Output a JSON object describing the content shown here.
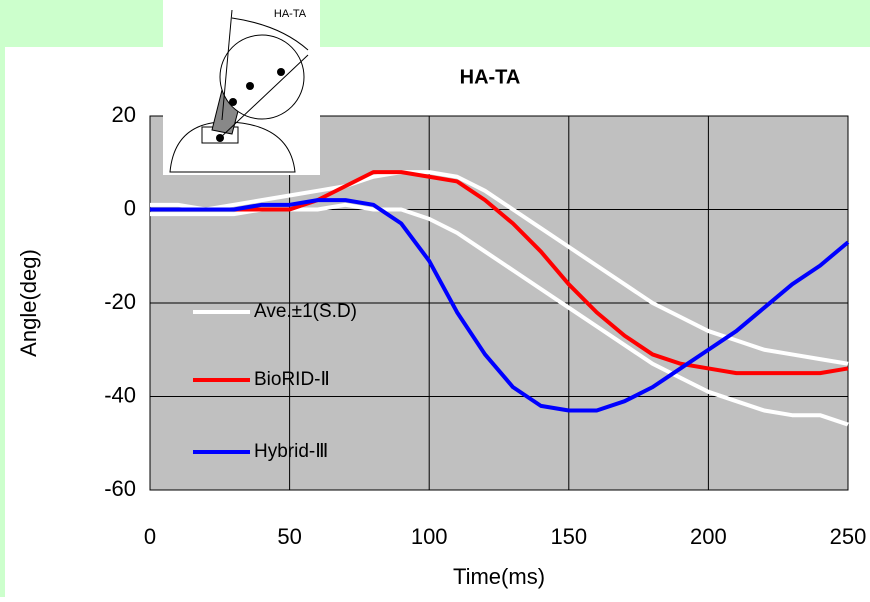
{
  "chart_data": {
    "type": "line",
    "title": "HA-TA",
    "x_label": "Time(ms)",
    "y_label": "Angle(deg)",
    "x": [
      0,
      10,
      20,
      30,
      40,
      50,
      60,
      70,
      80,
      90,
      100,
      110,
      120,
      130,
      140,
      150,
      160,
      170,
      180,
      190,
      200,
      210,
      220,
      230,
      240,
      250
    ],
    "series": [
      {
        "name": "Ave.±1(S.D)",
        "color": "#ffffff",
        "values": [
          1,
          1,
          0,
          1,
          2,
          3,
          4,
          5,
          7,
          8,
          8,
          7,
          4,
          0,
          -4,
          -8,
          -12,
          -16,
          -20,
          -23,
          -26,
          -28,
          -30,
          -31,
          -32,
          -33
        ]
      },
      {
        "color": "#ffffff",
        "values": [
          -1,
          -1,
          -1,
          -1,
          0,
          0,
          0,
          1,
          0,
          0,
          -2,
          -5,
          -9,
          -13,
          -17,
          -21,
          -25,
          -29,
          -33,
          -36,
          -39,
          -41,
          -43,
          -44,
          -44,
          -46
        ]
      },
      {
        "name": "BioRID-Ⅱ",
        "color": "#ff0000",
        "values": [
          0,
          0,
          0,
          0,
          0,
          0,
          2,
          5,
          8,
          8,
          7,
          6,
          2,
          -3,
          -9,
          -16,
          -22,
          -27,
          -31,
          -33,
          -34,
          -35,
          -35,
          -35,
          -35,
          -34
        ]
      },
      {
        "name": "Hybrid-Ⅲ",
        "color": "#0000ff",
        "values": [
          0,
          0,
          0,
          0,
          1,
          1,
          2,
          2,
          1,
          -3,
          -11,
          -22,
          -31,
          -38,
          -42,
          -43,
          -43,
          -41,
          -38,
          -34,
          -30,
          -26,
          -21,
          -16,
          -12,
          -7
        ]
      }
    ],
    "xlim": [
      0,
      250
    ],
    "xticks": [
      0,
      50,
      100,
      150,
      200,
      250
    ],
    "ylim": [
      -60,
      20
    ],
    "yticks": [
      -60,
      -40,
      -20,
      0,
      20
    ],
    "grid": true
  },
  "inset": {
    "label": "HA-TA"
  }
}
